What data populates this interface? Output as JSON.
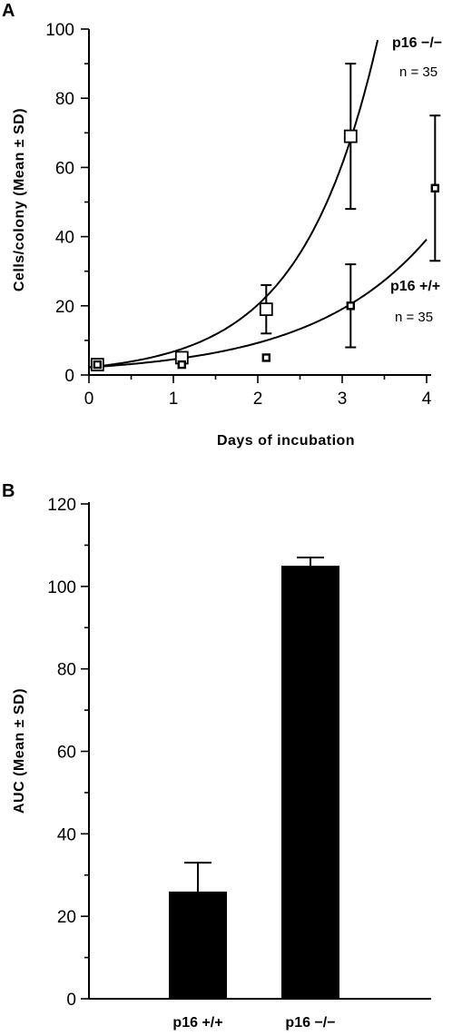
{
  "chart_data": [
    {
      "panel": "A",
      "type": "scatter",
      "ylabel": "Cells/colony (Mean ± SD)",
      "xlabel": "Days of incubation",
      "xlim": [
        0,
        4
      ],
      "ylim": [
        0,
        100
      ],
      "x_ticks": [
        0,
        1,
        2,
        3,
        4
      ],
      "y_ticks": [
        0,
        20,
        40,
        60,
        80,
        100
      ],
      "series": [
        {
          "name": "p16 −/−",
          "n_label": "n = 35",
          "marker": "open-square-large",
          "points": [
            {
              "x": 0.1,
              "y": 3,
              "sd": 0
            },
            {
              "x": 1.1,
              "y": 5,
              "sd": 0
            },
            {
              "x": 2.1,
              "y": 19,
              "sd": 7
            },
            {
              "x": 3.1,
              "y": 69,
              "sd": 21
            }
          ],
          "fit_curve": {
            "a": 2.25,
            "k": 1.1,
            "x_end": 3.42
          }
        },
        {
          "name": "p16 +/+",
          "n_label": "n = 35",
          "marker": "open-square-small",
          "points": [
            {
              "x": 0.1,
              "y": 3,
              "sd": 0
            },
            {
              "x": 1.1,
              "y": 3,
              "sd": 0
            },
            {
              "x": 2.1,
              "y": 5,
              "sd": 0
            },
            {
              "x": 3.1,
              "y": 20,
              "sd": 12
            },
            {
              "x": 4.1,
              "y": 54,
              "sd": 21
            }
          ],
          "fit_curve": {
            "a": 2.2,
            "k": 0.72,
            "x_end": 4.0
          }
        }
      ]
    },
    {
      "panel": "B",
      "type": "bar",
      "ylabel": "AUC (Mean ± SD)",
      "xlabel": "",
      "ylim": [
        0,
        120
      ],
      "y_ticks": [
        0,
        20,
        40,
        60,
        80,
        100,
        120
      ],
      "categories": [
        "p16 +/+",
        "p16 −/−"
      ],
      "values": [
        26,
        105
      ],
      "errors": [
        7,
        2
      ]
    }
  ]
}
